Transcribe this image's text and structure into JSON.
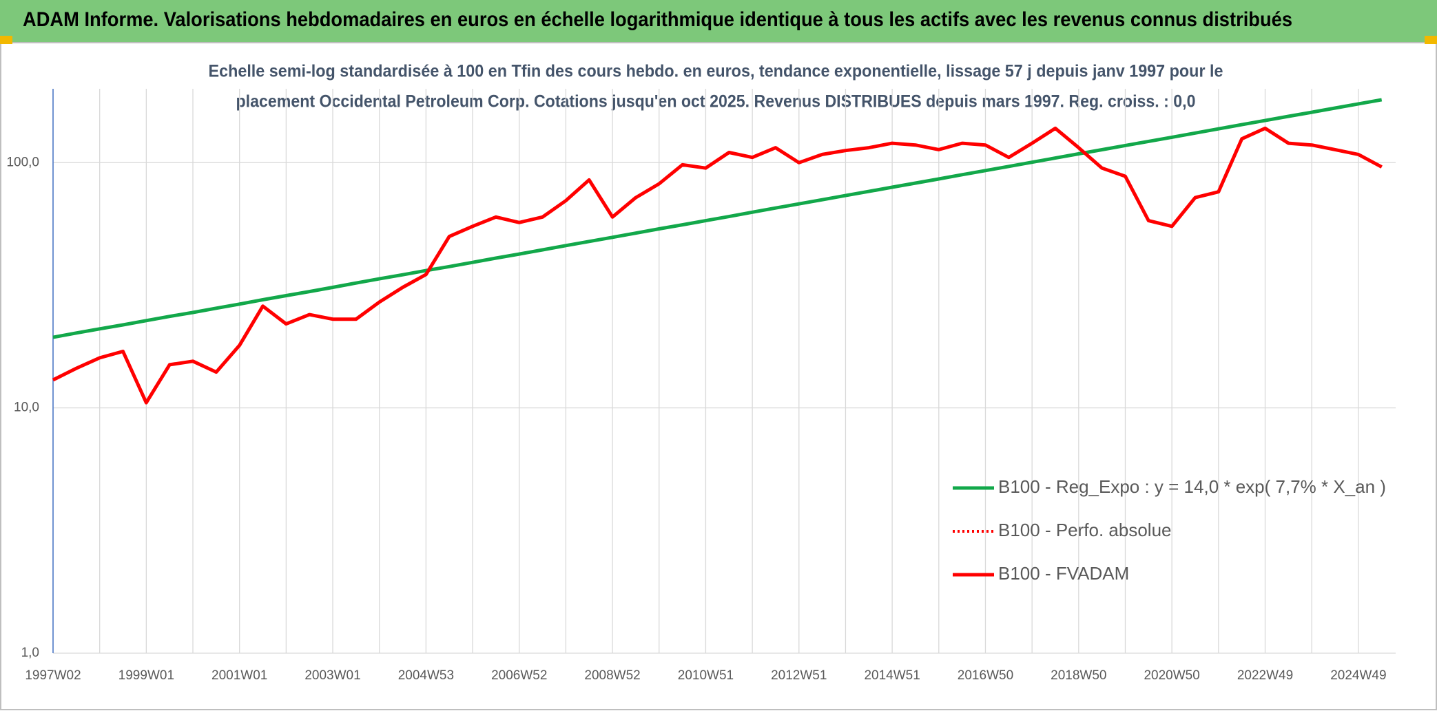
{
  "chart_data": {
    "type": "line",
    "title": "ADAM Informe. Valorisations hebdomadaires en euros en échelle logarithmique identique à tous les actifs avec les revenus connus distribués",
    "subtitle": [
      "Echelle semi-log standardisée à 100 en Tfin des cours hebdo. en euros, tendance exponentielle, lissage 57 j depuis janv 1997 pour le",
      "placement Occidental Petroleum Corp. Cotations jusqu'en oct 2025. Revenus DISTRIBUES depuis mars 1997. Reg. croiss. : 0,0"
    ],
    "categories": [
      "1997W02",
      null,
      null,
      null,
      "1999W01",
      null,
      null,
      null,
      "2001W01",
      null,
      null,
      null,
      "2003W01",
      null,
      null,
      null,
      "2004W53",
      null,
      null,
      null,
      "2006W52",
      null,
      null,
      null,
      "2008W52",
      null,
      null,
      null,
      "2010W51",
      null,
      null,
      null,
      "2012W51",
      null,
      null,
      null,
      "2014W51",
      null,
      null,
      null,
      "2016W50",
      null,
      null,
      null,
      "2018W50",
      null,
      null,
      null,
      "2020W50",
      null,
      null,
      null,
      "2022W49",
      null,
      null,
      null,
      "2024W49",
      null
    ],
    "series": [
      {
        "name": "B100 - Reg_Expo : y = 14,0 * exp( 7,7% *  X_an )",
        "color": "#12a84a",
        "dash": "solid",
        "values": [
          19.4,
          20.2,
          21.0,
          21.8,
          22.7,
          23.6,
          24.5,
          25.5,
          26.5,
          27.6,
          28.7,
          29.8,
          31.0,
          32.3,
          33.6,
          34.9,
          36.3,
          37.7,
          39.2,
          40.8,
          42.4,
          44.1,
          45.9,
          47.7,
          49.6,
          51.6,
          53.7,
          55.8,
          58.0,
          60.3,
          62.8,
          65.3,
          67.9,
          70.6,
          73.4,
          76.3,
          79.4,
          82.5,
          85.8,
          89.3,
          92.8,
          96.5,
          100.4,
          104.4,
          108.6,
          112.9,
          117.4,
          122.1,
          126.9,
          132.0,
          137.3,
          142.8,
          148.5,
          154.4,
          160.5,
          166.9,
          173.6,
          180.5
        ]
      },
      {
        "name": "B100 - Perfo. absolue",
        "color": "#ff0000",
        "dash": "dotted",
        "values": [
          13,
          14.5,
          16,
          17,
          10.5,
          15,
          15.5,
          14,
          18,
          26,
          22,
          24,
          23,
          23,
          27,
          31,
          35,
          50,
          55,
          60,
          57,
          60,
          70,
          85,
          60,
          72,
          82,
          98,
          95,
          110,
          105,
          115,
          100,
          108,
          112,
          115,
          120,
          118,
          113,
          120,
          118,
          105,
          120,
          138,
          115,
          95,
          88,
          58,
          55,
          72,
          76,
          125,
          138,
          120,
          118,
          113,
          108,
          96
        ]
      },
      {
        "name": "B100 - FVADAM",
        "color": "#ff0000",
        "dash": "solid",
        "values": [
          13,
          14.5,
          16,
          17,
          10.5,
          15,
          15.5,
          14,
          18,
          26,
          22,
          24,
          23,
          23,
          27,
          31,
          35,
          50,
          55,
          60,
          57,
          60,
          70,
          85,
          60,
          72,
          82,
          98,
          95,
          110,
          105,
          115,
          100,
          108,
          112,
          115,
          120,
          118,
          113,
          120,
          118,
          105,
          120,
          138,
          115,
          95,
          88,
          58,
          55,
          72,
          76,
          125,
          138,
          120,
          118,
          113,
          108,
          96
        ]
      }
    ],
    "ylim": [
      1,
      200
    ],
    "yticks": [
      {
        "value": 1,
        "label": "1,0"
      },
      {
        "value": 10,
        "label": "10,0"
      },
      {
        "value": 100,
        "label": "100,0"
      }
    ],
    "log_y": true,
    "grid": true,
    "legend": "lower right"
  }
}
